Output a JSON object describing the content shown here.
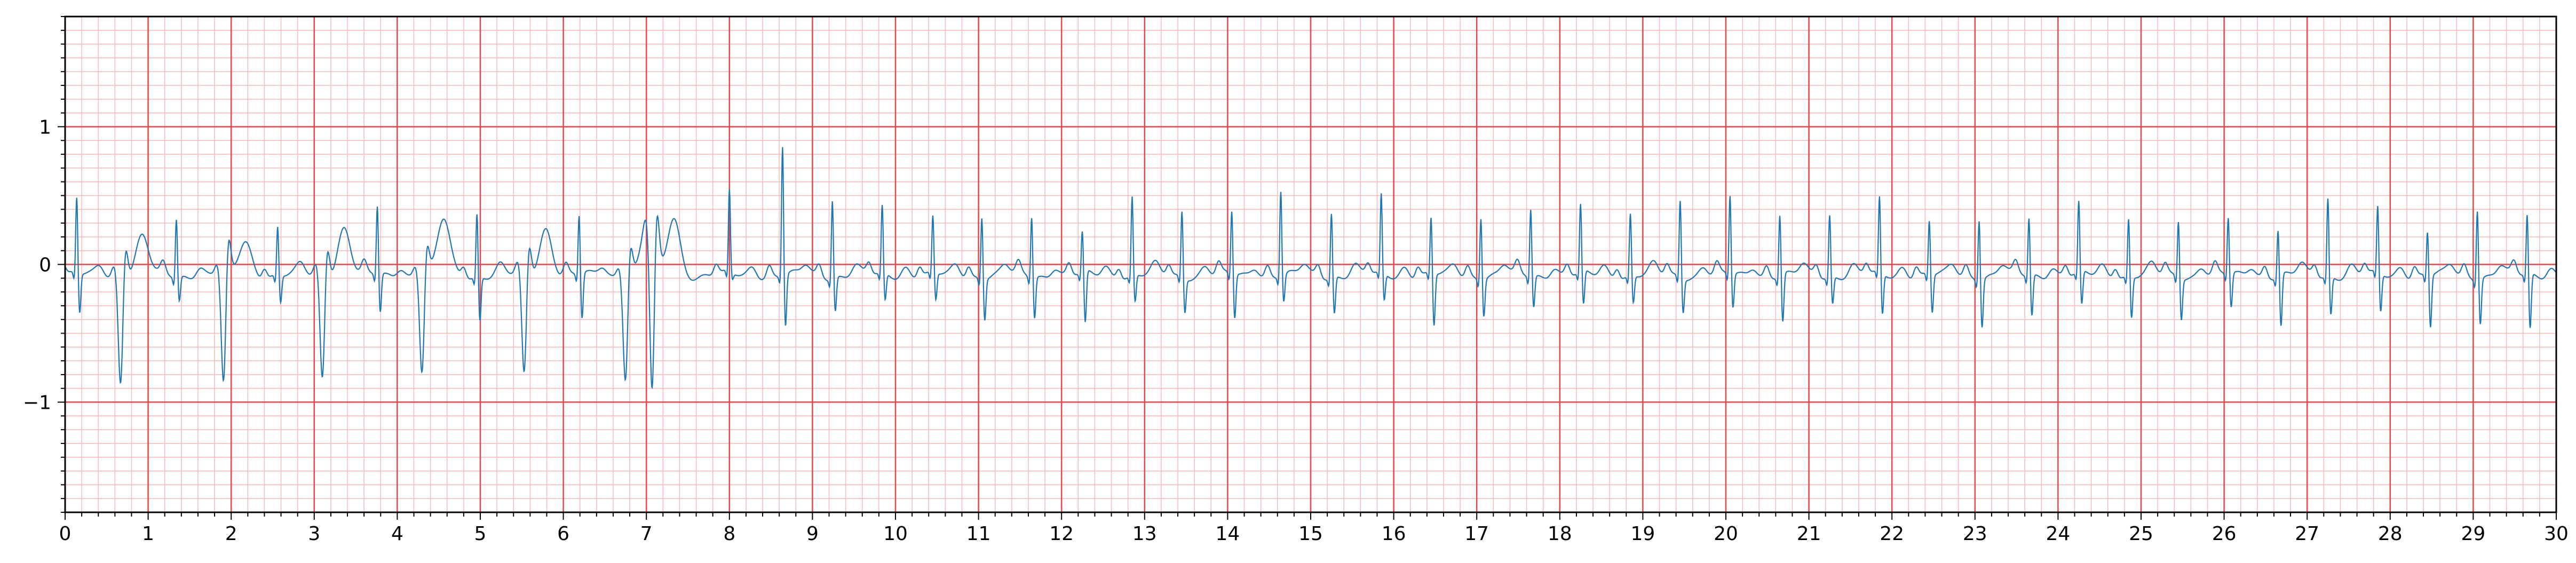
{
  "chart_data": {
    "type": "line",
    "title": "",
    "xlabel": "",
    "ylabel": "",
    "xlim": [
      0,
      30
    ],
    "ylim": [
      -1.8,
      1.8
    ],
    "x_ticks": [
      0,
      1,
      2,
      3,
      4,
      5,
      6,
      7,
      8,
      9,
      10,
      11,
      12,
      13,
      14,
      15,
      16,
      17,
      18,
      19,
      20,
      21,
      22,
      23,
      24,
      25,
      26,
      27,
      28,
      29,
      30
    ],
    "x_tick_labels": [
      "0",
      "1",
      "2",
      "3",
      "4",
      "5",
      "6",
      "7",
      "8",
      "9",
      "10",
      "11",
      "12",
      "13",
      "14",
      "15",
      "16",
      "17",
      "18",
      "19",
      "20",
      "21",
      "22",
      "23",
      "24",
      "25",
      "26",
      "27",
      "28",
      "29",
      "30"
    ],
    "y_ticks": [
      1,
      0,
      -1
    ],
    "y_tick_labels": [
      "1",
      "0",
      "−1"
    ],
    "grid": {
      "major": true,
      "minor": true,
      "major_step_x": 1,
      "minor_step_x": 0.2,
      "major_step_y": 1,
      "minor_step_y": 0.1,
      "major_color": "#e8474a",
      "minor_color": "#f9b9b9"
    },
    "series_color": "#1f77b4",
    "series": [
      {
        "beats": [
          {
            "t": 0.14,
            "amp": 0.56,
            "depth": -0.29,
            "twave": 0.0
          },
          {
            "t": 0.67,
            "amp": 0.0,
            "depth": -0.83,
            "twave": 0.28,
            "pvc": true
          },
          {
            "t": 1.34,
            "amp": 0.43,
            "depth": -0.18,
            "twave": 0.0
          },
          {
            "t": 1.91,
            "amp": 0.0,
            "depth": -0.86,
            "twave": 0.25,
            "pvc": true
          },
          {
            "t": 2.56,
            "amp": 0.36,
            "depth": -0.2,
            "twave": 0.0
          },
          {
            "t": 3.1,
            "amp": 0.0,
            "depth": -0.8,
            "twave": 0.35,
            "pvc": true
          },
          {
            "t": 3.76,
            "amp": 0.51,
            "depth": -0.28,
            "twave": 0.0
          },
          {
            "t": 4.3,
            "amp": 0.0,
            "depth": -0.75,
            "twave": 0.4,
            "pvc": true
          },
          {
            "t": 4.96,
            "amp": 0.47,
            "depth": -0.32,
            "twave": 0.0
          },
          {
            "t": 5.53,
            "amp": 0.0,
            "depth": -0.79,
            "twave": 0.35,
            "pvc": true
          },
          {
            "t": 6.19,
            "amp": 0.44,
            "depth": -0.33,
            "twave": 0.0
          },
          {
            "t": 6.75,
            "amp": 0.0,
            "depth": -0.79,
            "twave": 0.35,
            "pvc": true
          },
          {
            "t": 7.07,
            "amp": 0.0,
            "depth": -1.2,
            "twave": 0.42,
            "pvc": true
          },
          {
            "t": 8.0,
            "amp": 0.6,
            "depth": -0.05,
            "twave": 0.0
          },
          {
            "t": 8.64,
            "amp": 0.96,
            "depth": -0.38,
            "twave": 0.0
          },
          {
            "t": 9.24,
            "amp": 0.58,
            "depth": -0.25,
            "twave": 0.0
          },
          {
            "t": 9.84,
            "amp": 0.5,
            "depth": -0.2,
            "twave": 0.0
          },
          {
            "t": 10.45,
            "amp": 0.42,
            "depth": -0.2,
            "twave": 0.0
          },
          {
            "t": 11.04,
            "amp": 0.46,
            "depth": -0.3,
            "twave": 0.0
          },
          {
            "t": 11.64,
            "amp": 0.45,
            "depth": -0.3,
            "twave": 0.0
          },
          {
            "t": 12.25,
            "amp": 0.31,
            "depth": -0.38,
            "twave": 0.0
          },
          {
            "t": 12.85,
            "amp": 0.58,
            "depth": -0.2,
            "twave": 0.0
          },
          {
            "t": 13.45,
            "amp": 0.49,
            "depth": -0.25,
            "twave": 0.0
          },
          {
            "t": 14.05,
            "amp": 0.47,
            "depth": -0.32,
            "twave": 0.0
          },
          {
            "t": 14.64,
            "amp": 0.63,
            "depth": -0.2,
            "twave": 0.0
          },
          {
            "t": 15.25,
            "amp": 0.48,
            "depth": -0.27,
            "twave": 0.0
          },
          {
            "t": 15.85,
            "amp": 0.58,
            "depth": -0.2,
            "twave": 0.0
          },
          {
            "t": 16.45,
            "amp": 0.42,
            "depth": -0.38,
            "twave": 0.0
          },
          {
            "t": 17.05,
            "amp": 0.46,
            "depth": -0.27,
            "twave": 0.0
          },
          {
            "t": 17.65,
            "amp": 0.5,
            "depth": -0.23,
            "twave": 0.0
          },
          {
            "t": 18.25,
            "amp": 0.5,
            "depth": -0.25,
            "twave": 0.0
          },
          {
            "t": 18.85,
            "amp": 0.46,
            "depth": -0.2,
            "twave": 0.0
          },
          {
            "t": 19.45,
            "amp": 0.57,
            "depth": -0.25,
            "twave": 0.0
          },
          {
            "t": 20.05,
            "amp": 0.58,
            "depth": -0.25,
            "twave": 0.0
          },
          {
            "t": 20.65,
            "amp": 0.46,
            "depth": -0.35,
            "twave": 0.0
          },
          {
            "t": 21.25,
            "amp": 0.46,
            "depth": -0.2,
            "twave": 0.0
          },
          {
            "t": 21.85,
            "amp": 0.56,
            "depth": -0.3,
            "twave": 0.0
          },
          {
            "t": 22.45,
            "amp": 0.4,
            "depth": -0.28,
            "twave": 0.0
          },
          {
            "t": 23.05,
            "amp": 0.45,
            "depth": -0.35,
            "twave": 0.0
          },
          {
            "t": 23.65,
            "amp": 0.43,
            "depth": -0.3,
            "twave": 0.0
          },
          {
            "t": 24.25,
            "amp": 0.52,
            "depth": -0.25,
            "twave": 0.0
          },
          {
            "t": 24.85,
            "amp": 0.43,
            "depth": -0.3,
            "twave": 0.0
          },
          {
            "t": 25.45,
            "amp": 0.42,
            "depth": -0.3,
            "twave": 0.0
          },
          {
            "t": 26.05,
            "amp": 0.42,
            "depth": -0.25,
            "twave": 0.0
          },
          {
            "t": 26.65,
            "amp": 0.35,
            "depth": -0.38,
            "twave": 0.0
          },
          {
            "t": 27.25,
            "amp": 0.58,
            "depth": -0.28,
            "twave": 0.0
          },
          {
            "t": 27.85,
            "amp": 0.49,
            "depth": -0.28,
            "twave": 0.0
          },
          {
            "t": 28.45,
            "amp": 0.33,
            "depth": -0.38,
            "twave": 0.0
          },
          {
            "t": 29.05,
            "amp": 0.52,
            "depth": -0.33,
            "twave": 0.0
          },
          {
            "t": 29.65,
            "amp": 0.45,
            "depth": -0.4,
            "twave": 0.0
          }
        ]
      }
    ]
  }
}
